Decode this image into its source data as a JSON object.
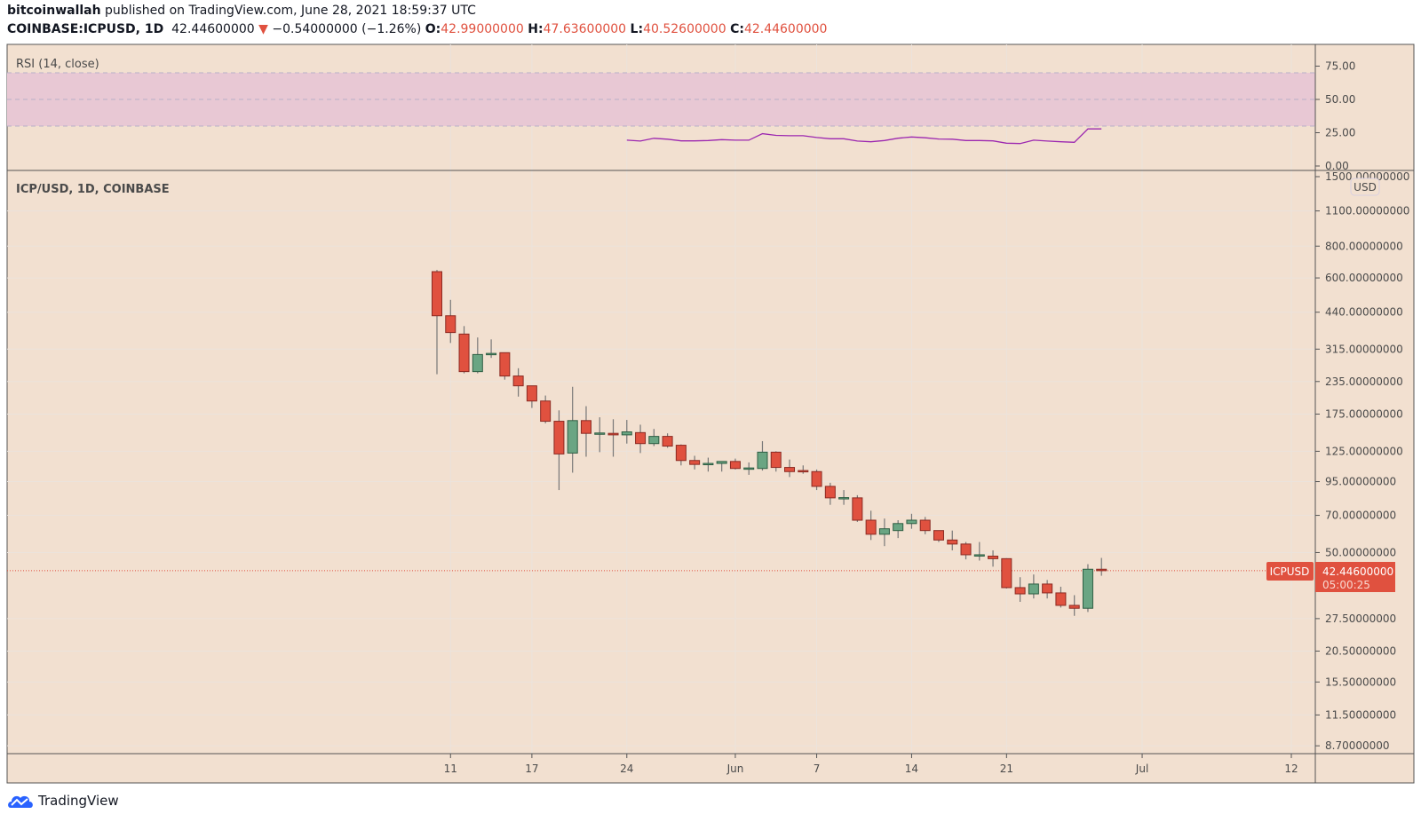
{
  "header": {
    "publisher": "bitcoinwallah",
    "published_text": "published on TradingView.com, June 28, 2021 18:59:37 UTC",
    "symbol": "COINBASE:ICPUSD, 1D",
    "last": "42.44600000",
    "change": "−0.54000000 (−1.26%)",
    "o_label": "O:",
    "o": "42.99000000",
    "h_label": "H:",
    "h": "47.63600000",
    "l_label": "L:",
    "l": "40.52600000",
    "c_label": "C:",
    "c": "42.44600000"
  },
  "rsi_pane": {
    "title": "RSI (14, close)"
  },
  "main_pane": {
    "title": "ICP/USD, 1D, COINBASE",
    "currency": "USD"
  },
  "price_tag": {
    "symbol": "ICPUSD",
    "price": "42.44600000",
    "countdown": "05:00:25"
  },
  "footer": {
    "brand": "TradingView"
  },
  "colors": {
    "background": "#f2e0d0",
    "up": "#6aa583",
    "down": "#e0513f",
    "rsi_line": "#9c27b0",
    "rsi_band": "#e8c8d4"
  },
  "chart_data": {
    "type": "candlestick",
    "title": "ICP/USD, 1D, COINBASE",
    "y_scale": "log",
    "ylim": [
      8.7,
      1500
    ],
    "y_ticks": [
      "1500.00000000",
      "1100.00000000",
      "800.00000000",
      "600.00000000",
      "440.00000000",
      "315.00000000",
      "235.00000000",
      "175.00000000",
      "125.00000000",
      "95.00000000",
      "70.00000000",
      "50.00000000",
      "27.50000000",
      "20.50000000",
      "15.50000000",
      "11.50000000",
      "8.70000000"
    ],
    "x_ticks": [
      {
        "label": "11",
        "day": 1
      },
      {
        "label": "17",
        "day": 7
      },
      {
        "label": "24",
        "day": 14
      },
      {
        "label": "Jun",
        "day": 22
      },
      {
        "label": "7",
        "day": 28
      },
      {
        "label": "14",
        "day": 35
      },
      {
        "label": "21",
        "day": 42
      },
      {
        "label": "Jul",
        "day": 52
      },
      {
        "label": "12",
        "day": 63
      }
    ],
    "first_date": "2021-05-10",
    "ohlc": [
      [
        635,
        645,
        251,
        426
      ],
      [
        426,
        492,
        333,
        366
      ],
      [
        361,
        388,
        253,
        257
      ],
      [
        257,
        350,
        253,
        300
      ],
      [
        301,
        344,
        291,
        303
      ],
      [
        305,
        305,
        239,
        247
      ],
      [
        247,
        265,
        205,
        226
      ],
      [
        226,
        226,
        185,
        197
      ],
      [
        197,
        207,
        161,
        164
      ],
      [
        164,
        181,
        88,
        122
      ],
      [
        123,
        224,
        103,
        165
      ],
      [
        165,
        188,
        119,
        147
      ],
      [
        147,
        170,
        124,
        147.5
      ],
      [
        147,
        167,
        119,
        145
      ],
      [
        145,
        166,
        134,
        149
      ],
      [
        148,
        159,
        123,
        134
      ],
      [
        134,
        153,
        131,
        143
      ],
      [
        143,
        147,
        129,
        131
      ],
      [
        132,
        133,
        110,
        115
      ],
      [
        115,
        120,
        106,
        111
      ],
      [
        112,
        118,
        104,
        112
      ],
      [
        112,
        114,
        104,
        114
      ],
      [
        114,
        117,
        106,
        107
      ],
      [
        107,
        113,
        101,
        107.5
      ],
      [
        107,
        137,
        105,
        124
      ],
      [
        124,
        125,
        104,
        108
      ],
      [
        108,
        116,
        99,
        104
      ],
      [
        105,
        110,
        102,
        104
      ],
      [
        104,
        106,
        88,
        91
      ],
      [
        91,
        94,
        77,
        82
      ],
      [
        81.5,
        88,
        77,
        82.2
      ],
      [
        82,
        84,
        66,
        67
      ],
      [
        67,
        73,
        56,
        59
      ],
      [
        59,
        68,
        53,
        62
      ],
      [
        61,
        67,
        57,
        65
      ],
      [
        65,
        71,
        62,
        67
      ],
      [
        67,
        69,
        59,
        61
      ],
      [
        61,
        61,
        55,
        56
      ],
      [
        56,
        61,
        51,
        54
      ],
      [
        54,
        55,
        47,
        49
      ],
      [
        48.8,
        55,
        46.5,
        49
      ],
      [
        48.4,
        51,
        44,
        47.3
      ],
      [
        47.3,
        47.5,
        36.1,
        36.4
      ],
      [
        36.4,
        40,
        32,
        34.4
      ],
      [
        34.4,
        41,
        33,
        37.6
      ],
      [
        37.6,
        39,
        33,
        34.7
      ],
      [
        34.7,
        36.7,
        30.4,
        31
      ],
      [
        31,
        34,
        28.2,
        30.2
      ],
      [
        30.2,
        45,
        29.2,
        42.99
      ],
      [
        42.99,
        47.636,
        40.526,
        42.446
      ]
    ],
    "rsi": {
      "name": "RSI (14, close)",
      "ylim": [
        0,
        75
      ],
      "y_ticks": [
        "75.00",
        "50.00",
        "25.00",
        "0.00"
      ],
      "band": [
        30,
        70
      ],
      "start_day": 14,
      "values": [
        19.4,
        18.7,
        20.8,
        20.1,
        18.9,
        18.9,
        19.1,
        19.8,
        19.4,
        19.4,
        24.3,
        23,
        22.7,
        22.7,
        21.4,
        20.5,
        20.5,
        18.7,
        18.2,
        19.1,
        20.9,
        21.8,
        21.2,
        20.3,
        20.1,
        19.1,
        19.1,
        18.9,
        17.1,
        16.9,
        19.4,
        18.7,
        18.2,
        17.8,
        27.9,
        27.9
      ]
    }
  }
}
